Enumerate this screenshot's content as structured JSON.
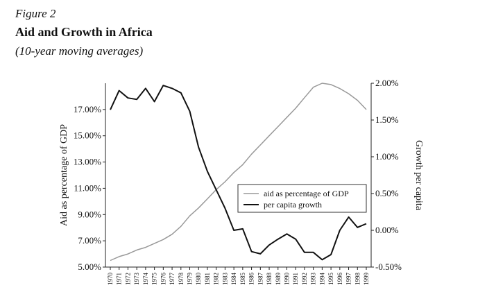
{
  "figure": {
    "label": "Figure 2",
    "title": "Aid and Growth in Africa",
    "subtitle": "(10-year moving averages)"
  },
  "chart_data": {
    "type": "line",
    "x": [
      1970,
      1971,
      1972,
      1973,
      1974,
      1975,
      1976,
      1977,
      1978,
      1979,
      1980,
      1981,
      1982,
      1983,
      1984,
      1985,
      1986,
      1987,
      1988,
      1989,
      1990,
      1991,
      1992,
      1993,
      1994,
      1995,
      1996,
      1997,
      1998,
      1999
    ],
    "xlabel": "",
    "ylabel_left": "Aid as percentage of GDP",
    "ylabel_right": "Growth per capita",
    "ylim_left": [
      5.0,
      19.0
    ],
    "ylim_right": [
      -0.5,
      2.0
    ],
    "yticks_left": [
      5,
      7,
      9,
      11,
      13,
      15,
      17
    ],
    "yticks_left_labels": [
      "5.00%",
      "7.00%",
      "9.00%",
      "11.00%",
      "13.00%",
      "15.00%",
      "17.00%"
    ],
    "yticks_right": [
      -0.5,
      0,
      0.5,
      1.0,
      1.5,
      2.0
    ],
    "yticks_right_labels": [
      "-0.50%",
      "0.00%",
      "0.50%",
      "1.00%",
      "1.50%",
      "2.00%"
    ],
    "series": [
      {
        "name": "aid as percentage of GDP",
        "axis": "left",
        "color": "#999999",
        "values": [
          5.5,
          5.8,
          6.0,
          6.3,
          6.5,
          6.8,
          7.1,
          7.5,
          8.1,
          8.9,
          9.5,
          10.2,
          10.9,
          11.5,
          12.2,
          12.8,
          13.6,
          14.3,
          15.0,
          15.7,
          16.4,
          17.1,
          17.9,
          18.7,
          19.0,
          18.9,
          18.6,
          18.2,
          17.7,
          17.0
        ]
      },
      {
        "name": "per capita growth",
        "axis": "right",
        "color": "#111111",
        "values": [
          1.64,
          1.9,
          1.8,
          1.78,
          1.93,
          1.75,
          1.97,
          1.93,
          1.87,
          1.62,
          1.13,
          0.8,
          0.55,
          0.3,
          0.0,
          0.02,
          -0.29,
          -0.32,
          -0.2,
          -0.12,
          -0.05,
          -0.12,
          -0.3,
          -0.3,
          -0.4,
          -0.33,
          0.0,
          0.18,
          0.04,
          0.09
        ]
      }
    ],
    "legend": {
      "placement": "inside-right"
    }
  }
}
